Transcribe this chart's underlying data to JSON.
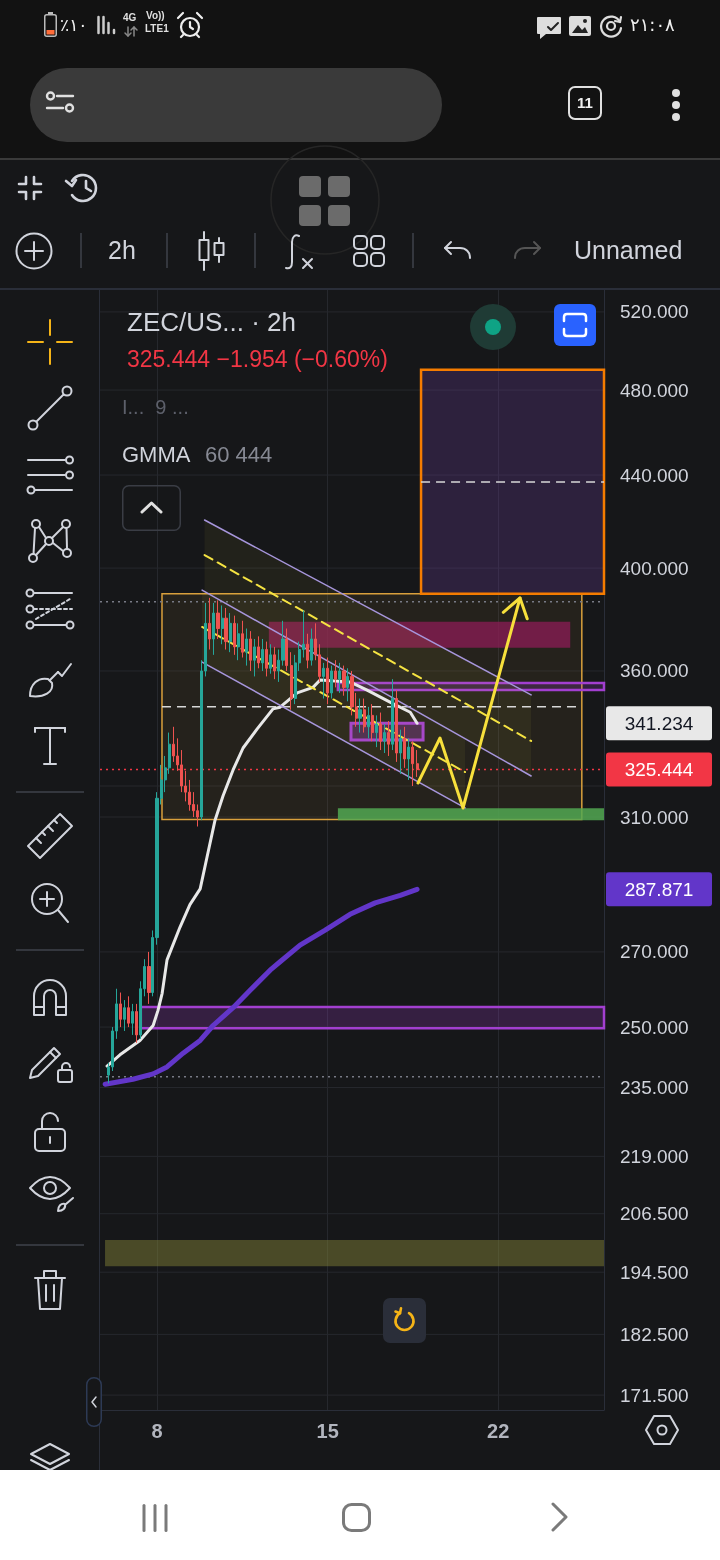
{
  "chart_data": {
    "type": "candlestick",
    "title": "ZEC/US... · 2h",
    "subtitle": "325.444 −1.954 (−0.60%)",
    "annotations": [
      "I...  9 ...",
      "GMMA",
      "60 444",
      "2h",
      "Unnamed",
      "11",
      "٪۱۰",
      "4G",
      "Vo))",
      "LTE1",
      "۲۱:۰۸"
    ],
    "x": [
      6,
      6.17,
      6.33,
      6.5,
      6.67,
      6.83,
      7,
      7.17,
      7.33,
      7.5,
      7.67,
      7.83,
      8,
      8.17,
      8.33,
      8.5,
      8.67,
      8.83,
      9,
      9.17,
      9.33,
      9.5,
      9.67,
      9.83,
      10,
      10.17,
      10.33,
      10.5,
      10.67,
      10.83,
      11,
      11.17,
      11.33,
      11.5,
      11.67,
      11.83,
      12,
      12.17,
      12.33,
      12.5,
      12.67,
      12.83,
      13,
      13.17,
      13.33,
      13.5,
      13.67,
      13.83,
      14,
      14.17,
      14.33,
      14.5,
      14.67,
      14.83,
      15,
      15.17,
      15.33,
      15.5,
      15.67,
      15.83,
      16,
      16.17,
      16.33,
      16.5,
      16.67,
      16.83,
      17,
      17.17,
      17.33,
      17.5,
      17.67,
      17.83,
      18,
      18.17,
      18.33,
      18.5,
      18.67
    ],
    "ohlc": [
      [
        238,
        241,
        236,
        240
      ],
      [
        240,
        250,
        239,
        249
      ],
      [
        249,
        260,
        247,
        256
      ],
      [
        256,
        259,
        250,
        252
      ],
      [
        252,
        257,
        249,
        255
      ],
      [
        255,
        258,
        250,
        251
      ],
      [
        251,
        256,
        248,
        254
      ],
      [
        254,
        256,
        246,
        248
      ],
      [
        248,
        262,
        247,
        260
      ],
      [
        260,
        268,
        258,
        266
      ],
      [
        266,
        270,
        256,
        259
      ],
      [
        259,
        276,
        258,
        274
      ],
      [
        274,
        318,
        272,
        316
      ],
      [
        316,
        327,
        314,
        322
      ],
      [
        322,
        330,
        318,
        326
      ],
      [
        326,
        338,
        324,
        334
      ],
      [
        334,
        340,
        328,
        330
      ],
      [
        330,
        336,
        325,
        327
      ],
      [
        327,
        332,
        318,
        320
      ],
      [
        320,
        325,
        315,
        318
      ],
      [
        318,
        322,
        312,
        314
      ],
      [
        314,
        318,
        310,
        312
      ],
      [
        312,
        314,
        307,
        310
      ],
      [
        310,
        364,
        309,
        360
      ],
      [
        360,
        386,
        358,
        378
      ],
      [
        378,
        388,
        368,
        372
      ],
      [
        372,
        386,
        366,
        382
      ],
      [
        382,
        387,
        372,
        376
      ],
      [
        376,
        385,
        370,
        380
      ],
      [
        380,
        384,
        368,
        371
      ],
      [
        371,
        382,
        367,
        378
      ],
      [
        378,
        381,
        366,
        369
      ],
      [
        369,
        378,
        364,
        374
      ],
      [
        374,
        379,
        365,
        367
      ],
      [
        367,
        376,
        362,
        372
      ],
      [
        372,
        375,
        360,
        364
      ],
      [
        364,
        372,
        358,
        369
      ],
      [
        369,
        373,
        361,
        363
      ],
      [
        363,
        372,
        360,
        368
      ],
      [
        368,
        371,
        358,
        361
      ],
      [
        361,
        370,
        359,
        366
      ],
      [
        366,
        369,
        357,
        360
      ],
      [
        360,
        368,
        356,
        364
      ],
      [
        364,
        379,
        362,
        372
      ],
      [
        372,
        376,
        360,
        362
      ],
      [
        362,
        367,
        346,
        350
      ],
      [
        350,
        366,
        348,
        363
      ],
      [
        363,
        371,
        360,
        368
      ],
      [
        368,
        383,
        365,
        370
      ],
      [
        370,
        374,
        361,
        364
      ],
      [
        364,
        376,
        362,
        372
      ],
      [
        372,
        378,
        364,
        366
      ],
      [
        366,
        370,
        356,
        358
      ],
      [
        358,
        363,
        350,
        361
      ],
      [
        361,
        365,
        348,
        352
      ],
      [
        352,
        362,
        350,
        360
      ],
      [
        360,
        364,
        354,
        357
      ],
      [
        357,
        363,
        352,
        360
      ],
      [
        360,
        362,
        351,
        354
      ],
      [
        354,
        361,
        349,
        358
      ],
      [
        358,
        360,
        344,
        347
      ],
      [
        347,
        352,
        340,
        343
      ],
      [
        343,
        350,
        338,
        346
      ],
      [
        346,
        350,
        338,
        340
      ],
      [
        340,
        347,
        336,
        344
      ],
      [
        344,
        348,
        335,
        338
      ],
      [
        338,
        344,
        333,
        341
      ],
      [
        341,
        345,
        332,
        335
      ],
      [
        335,
        341,
        331,
        338
      ],
      [
        338,
        342,
        330,
        334
      ],
      [
        334,
        357,
        332,
        350
      ],
      [
        350,
        353,
        328,
        331
      ],
      [
        331,
        339,
        324,
        336
      ],
      [
        336,
        340,
        326,
        329
      ],
      [
        329,
        336,
        322,
        333
      ],
      [
        333,
        335,
        320,
        327.398
      ],
      [
        327.398,
        332,
        323,
        325.444
      ]
    ],
    "colors": [
      "#26a69a",
      "#26a69a",
      "#26a69a",
      "#ef5350",
      "#26a69a",
      "#ef5350",
      "#26a69a",
      "#ef5350",
      "#26a69a",
      "#26a69a",
      "#ef5350",
      "#26a69a",
      "#26a69a",
      "#26a69a",
      "#26a69a",
      "#26a69a",
      "#ef5350",
      "#ef5350",
      "#ef5350",
      "#ef5350",
      "#ef5350",
      "#ef5350",
      "#ef5350",
      "#26a69a",
      "#26a69a",
      "#ef5350",
      "#26a69a",
      "#ef5350",
      "#26a69a",
      "#ef5350",
      "#26a69a",
      "#ef5350",
      "#26a69a",
      "#ef5350",
      "#26a69a",
      "#ef5350",
      "#26a69a",
      "#ef5350",
      "#26a69a",
      "#ef5350",
      "#26a69a",
      "#ef5350",
      "#26a69a",
      "#26a69a",
      "#ef5350",
      "#ef5350",
      "#26a69a",
      "#26a69a",
      "#26a69a",
      "#ef5350",
      "#26a69a",
      "#ef5350",
      "#ef5350",
      "#26a69a",
      "#ef5350",
      "#26a69a",
      "#ef5350",
      "#26a69a",
      "#ef5350",
      "#26a69a",
      "#ef5350",
      "#ef5350",
      "#26a69a",
      "#ef5350",
      "#26a69a",
      "#ef5350",
      "#26a69a",
      "#ef5350",
      "#26a69a",
      "#ef5350",
      "#26a69a",
      "#ef5350",
      "#26a69a",
      "#ef5350",
      "#26a69a",
      "#ef5350",
      "#ef5350"
    ],
    "series": [
      {
        "type": "line",
        "color": "#e8e8e8",
        "x": [
          5.95,
          6.48,
          7.3,
          7.84,
          8.04,
          8.21,
          8.41,
          8.94,
          9.35,
          9.77,
          10.05,
          10.38,
          10.71,
          11.12,
          11.53,
          12.11,
          12.76,
          13.05,
          13.75,
          14.4,
          14.69,
          15.92,
          16.62,
          17.56,
          18.39,
          18.67
        ],
        "values": [
          240.2,
          243,
          246.6,
          250.4,
          254.3,
          258.8,
          267.8,
          276.9,
          283.4,
          288,
          297.5,
          309,
          316.8,
          325.3,
          332.7,
          339.3,
          346.3,
          346.9,
          352,
          354,
          356.7,
          356,
          353,
          348.7,
          345.1,
          341.234
        ]
      },
      {
        "type": "line",
        "color": "#6236c9",
        "x": [
          5.87,
          7.01,
          7.84,
          8.41,
          9.07,
          9.77,
          10.3,
          11.12,
          11.82,
          12.64,
          13.05,
          13.87,
          14.9,
          15.92,
          16.95,
          17.98,
          18.67
        ],
        "values": [
          235.8,
          237,
          238.3,
          240,
          243.4,
          246.6,
          250.4,
          255,
          259.6,
          265,
          267.3,
          271.9,
          276.1,
          280.6,
          283.9,
          286.1,
          287.871
        ]
      },
      {
        "type": "line",
        "color": "#a796dc",
        "x": [
          9.95,
          23.35
        ],
        "values": [
          420.2,
          351.3
        ]
      },
      {
        "type": "line",
        "color": "#a796dc",
        "x": [
          9.85,
          23.35
        ],
        "values": [
          391.1,
          323.3
        ]
      },
      {
        "type": "line",
        "color": "#a796dc",
        "x": [
          9.85,
          20.64
        ],
        "values": [
          363.3,
          312.9
        ]
      },
      {
        "type": "line",
        "color": "#f5e342",
        "line_style": "dashed",
        "x": [
          9.95,
          23.35
        ],
        "values": [
          405.4,
          335.1
        ],
        "lower": [
          390.3,
          323.3
        ],
        "upper": [
          420.2,
          351.3
        ]
      },
      {
        "type": "line",
        "color": "#f5e342",
        "line_style": "dashed",
        "x": [
          9.85,
          20.64
        ],
        "values": [
          376.6,
          324.6
        ],
        "lower": [
          363.3,
          312.9
        ],
        "upper": [
          391.1,
          335.8
        ]
      }
    ],
    "bands": [
      {
        "axis": "y",
        "from": 309.2,
        "to": 389.6,
        "color": "#d9a03c"
      },
      {
        "axis": "y",
        "from": 389.6,
        "to": 490.1,
        "color": "#6a3d9a"
      },
      {
        "axis": "y",
        "from": 368.7,
        "to": 378.6,
        "color": "#8c1c55"
      },
      {
        "axis": "y",
        "from": 353.1,
        "to": 355.6,
        "color": "#a23fd0"
      },
      {
        "axis": "y",
        "from": 335.4,
        "to": 341.2,
        "color": "#a23fd0"
      },
      {
        "axis": "y",
        "from": 309,
        "to": 312.8,
        "color": "#52a852"
      },
      {
        "axis": "y",
        "from": 249.7,
        "to": 255.2,
        "color": "#a23fd0"
      },
      {
        "axis": "y",
        "from": 195.7,
        "to": 201,
        "color": "#8a8a3a"
      }
    ],
    "ref_lines": [
      {
        "axis": "y",
        "value": 386.5,
        "color": "#787b86",
        "line_style": "dotted"
      },
      {
        "axis": "y",
        "value": 237.6,
        "color": "#787b86",
        "line_style": "dotted"
      },
      {
        "axis": "y",
        "value": 325.444,
        "label": "325.444",
        "color": "#f23645",
        "line_style": "dotted"
      },
      {
        "axis": "y",
        "value": 347.1,
        "color": "#d8d8d8",
        "line_style": "dashed"
      },
      {
        "axis": "y",
        "value": 436.9,
        "color": "#d8d8d8",
        "line_style": "dashed"
      }
    ],
    "xlim": [
      5.66,
      26.34
    ],
    "xticks": [
      8,
      15,
      22
    ],
    "ylim": [
      168.9,
      531.8
    ],
    "yticks": [
      {
        "value": 520,
        "label": "520.000"
      },
      {
        "value": 480,
        "label": "480.000"
      },
      {
        "value": 440,
        "label": "440.000"
      },
      {
        "value": 400,
        "label": "400.000"
      },
      {
        "value": 360,
        "label": "360.000"
      },
      341.234,
      {
        "value": 320,
        "label": null
      },
      {
        "value": 310,
        "label": "310.000"
      },
      287.871,
      {
        "value": 270,
        "label": "270.000"
      },
      {
        "value": 250,
        "label": "250.000"
      },
      {
        "value": 235,
        "label": "235.000"
      },
      {
        "value": 219,
        "label": "219.000"
      },
      {
        "value": 206.5,
        "label": "206.500"
      },
      {
        "value": 194.5,
        "label": "194.500"
      },
      {
        "value": 182.5,
        "label": "182.500"
      },
      {
        "value": 171.5,
        "label": "171.500"
      }
    ],
    "log": true,
    "grid": true
  }
}
